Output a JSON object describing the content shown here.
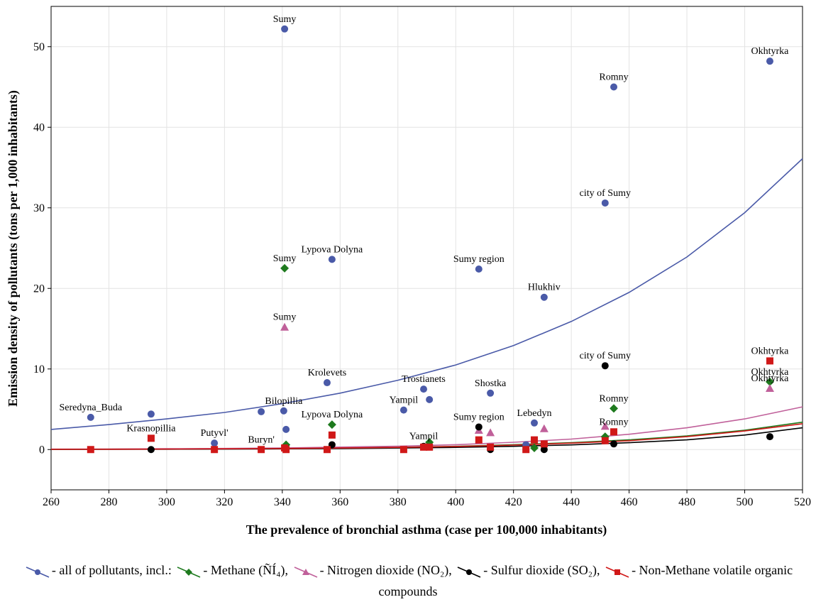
{
  "chart_data": {
    "type": "scatter",
    "x_label": "The prevalence of bronchial asthma (case per 100,000 inhabitants)",
    "y_label": "Emission density of pollutants (tons per 1,000 inhabitants)",
    "xlim": [
      260,
      520
    ],
    "ylim": [
      -5,
      55
    ],
    "xticks": [
      260,
      280,
      300,
      320,
      340,
      360,
      380,
      400,
      420,
      440,
      460,
      480,
      500,
      520
    ],
    "yticks": [
      0,
      10,
      20,
      30,
      40,
      50
    ],
    "grid": true,
    "fit_x": [
      260,
      280,
      300,
      320,
      340,
      360,
      380,
      400,
      420,
      440,
      460,
      480,
      500,
      520
    ],
    "series": [
      {
        "name": "- all of pollutants, incl.:",
        "color": "#4a5aa8",
        "marker": "circle",
        "x": [
          273.7,
          294.6,
          316.5,
          332.7,
          340.5,
          341.3,
          340.8,
          355.5,
          357.2,
          382.0,
          388.9,
          390.9,
          408.0,
          412.0,
          424.3,
          427.2,
          430.6,
          451.7,
          454.7,
          508.7
        ],
        "values": [
          4.0,
          4.4,
          0.8,
          4.7,
          4.8,
          2.5,
          52.2,
          8.3,
          23.6,
          4.9,
          7.5,
          6.2,
          22.4,
          7.0,
          0.6,
          3.3,
          18.9,
          30.6,
          45.0,
          48.2
        ],
        "labels": [
          "Seredyna_Buda",
          null,
          "Putyvl'",
          null,
          "Bilopillia",
          null,
          "Sumy",
          "Krolevets",
          "Lypova Dolyna",
          "Yampil",
          "Trostianets",
          null,
          "Sumy region",
          "Shostka",
          null,
          "Lebedyn",
          "Hlukhiv",
          "city of Sumy",
          "Romny",
          "Okhtyrka"
        ],
        "fit": [
          2.5,
          3.1,
          3.8,
          4.6,
          5.7,
          7.0,
          8.6,
          10.5,
          12.9,
          15.9,
          19.5,
          23.9,
          29.4,
          36.1
        ]
      },
      {
        "name": "- Methane (ÑÍ₄),",
        "color": "#1e7a1e",
        "marker": "diamond",
        "x": [
          340.8,
          341.3,
          357.2,
          390.9,
          427.2,
          451.7,
          454.7,
          508.7
        ],
        "values": [
          22.5,
          0.6,
          3.1,
          0.9,
          0.2,
          1.6,
          5.1,
          8.4
        ],
        "labels": [
          "Sumy",
          null,
          "Lypova Dolyna",
          null,
          null,
          null,
          "Romny",
          "Okhtyrka"
        ],
        "fit": [
          0.03,
          0.05,
          0.07,
          0.1,
          0.14,
          0.2,
          0.28,
          0.4,
          0.6,
          0.85,
          1.2,
          1.7,
          2.4,
          3.4
        ]
      },
      {
        "name": "- Nitrogen dioxide (NO₂),",
        "color": "#c0609a",
        "marker": "triangle",
        "x": [
          340.8,
          408.0,
          412.0,
          430.6,
          451.7,
          508.7
        ],
        "values": [
          15.2,
          2.4,
          2.1,
          2.6,
          2.9,
          7.6
        ],
        "labels": [
          "Sumy",
          null,
          null,
          null,
          null,
          "Okhtyrka"
        ],
        "fit": [
          0.05,
          0.07,
          0.1,
          0.14,
          0.2,
          0.3,
          0.42,
          0.6,
          0.9,
          1.3,
          1.9,
          2.7,
          3.8,
          5.3
        ]
      },
      {
        "name": "- Sulfur dioxide (SO₂),",
        "color": "#000000",
        "marker": "circle",
        "x": [
          294.6,
          357.2,
          388.9,
          408.0,
          412.0,
          430.6,
          451.7,
          454.7,
          508.7
        ],
        "values": [
          0.0,
          0.6,
          0.4,
          2.8,
          0.0,
          0.0,
          10.4,
          0.7,
          1.6
        ],
        "labels": [
          null,
          null,
          "Yampil",
          "Sumy region",
          null,
          null,
          "city of Sumy",
          null,
          null
        ],
        "fit": [
          0.02,
          0.03,
          0.04,
          0.06,
          0.09,
          0.13,
          0.19,
          0.27,
          0.4,
          0.58,
          0.85,
          1.2,
          1.8,
          2.7
        ]
      },
      {
        "name": "- Non-Methane volatile organic compounds",
        "color": "#d01818",
        "marker": "square",
        "x": [
          273.7,
          294.6,
          316.5,
          332.7,
          340.8,
          341.3,
          355.5,
          357.2,
          382.0,
          388.9,
          390.9,
          408.0,
          412.0,
          424.3,
          427.2,
          430.6,
          451.7,
          454.7,
          508.7
        ],
        "values": [
          0,
          1.4,
          0,
          0,
          0.2,
          0,
          0,
          1.8,
          0,
          0.3,
          0.3,
          1.2,
          0.3,
          0,
          1.2,
          0.7,
          1.1,
          2.2,
          11.0
        ],
        "labels": [
          null,
          "Krasnopillia",
          null,
          "Buryn'",
          null,
          null,
          null,
          null,
          null,
          null,
          null,
          null,
          null,
          null,
          null,
          null,
          null,
          "Romny",
          "Okhtyrka"
        ],
        "fit": [
          0.03,
          0.04,
          0.06,
          0.09,
          0.13,
          0.19,
          0.27,
          0.38,
          0.55,
          0.8,
          1.1,
          1.6,
          2.3,
          3.2
        ]
      }
    ]
  }
}
